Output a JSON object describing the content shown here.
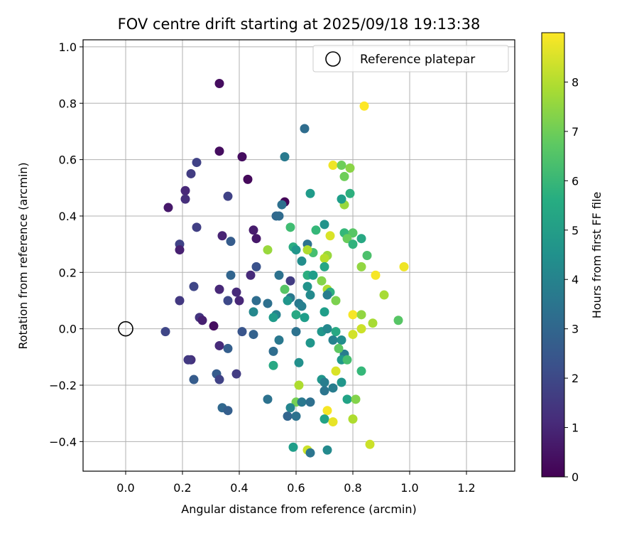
{
  "chart_data": {
    "type": "scatter",
    "title": "FOV centre drift starting at 2025/09/18 19:13:38",
    "xlabel": "Angular distance from reference (arcmin)",
    "ylabel": "Rotation from reference (arcmin)",
    "xlim": [
      -0.15,
      1.37
    ],
    "ylim": [
      -0.505,
      1.025
    ],
    "xticks": [
      0.0,
      0.2,
      0.4,
      0.6,
      0.8,
      1.0,
      1.2
    ],
    "xtick_labels": [
      "0.0",
      "0.2",
      "0.4",
      "0.6",
      "0.8",
      "1.0",
      "1.2"
    ],
    "yticks": [
      -0.4,
      -0.2,
      0.0,
      0.2,
      0.4,
      0.6,
      0.8,
      1.0
    ],
    "ytick_labels": [
      "−0.4",
      "−0.2",
      "0.0",
      "0.2",
      "0.4",
      "0.6",
      "0.8",
      "1.0"
    ],
    "grid": true,
    "legend": {
      "position": "top-right",
      "entries": [
        "Reference platepar"
      ]
    },
    "reference_point": {
      "x": 0.0,
      "y": 0.0,
      "label": "Reference platepar"
    },
    "colorbar": {
      "label": "Hours from first FF file",
      "min": 0,
      "max": 9.0,
      "ticks": [
        0,
        1,
        2,
        3,
        4,
        5,
        6,
        7,
        8
      ],
      "tick_labels": [
        "0",
        "1",
        "2",
        "3",
        "4",
        "5",
        "6",
        "7",
        "8"
      ],
      "colormap": "viridis"
    },
    "points": [
      {
        "x": 0.33,
        "y": 0.87,
        "t": 0.3
      },
      {
        "x": 0.41,
        "y": 0.61,
        "t": 0.3
      },
      {
        "x": 0.33,
        "y": 0.63,
        "t": 0.3
      },
      {
        "x": 0.43,
        "y": 0.53,
        "t": 0.2
      },
      {
        "x": 0.56,
        "y": 0.45,
        "t": 0.1
      },
      {
        "x": 0.15,
        "y": 0.43,
        "t": 0.6
      },
      {
        "x": 0.21,
        "y": 0.49,
        "t": 1.0
      },
      {
        "x": 0.21,
        "y": 0.46,
        "t": 1.2
      },
      {
        "x": 0.23,
        "y": 0.55,
        "t": 1.6
      },
      {
        "x": 0.25,
        "y": 0.59,
        "t": 1.8
      },
      {
        "x": 0.36,
        "y": 0.47,
        "t": 1.8
      },
      {
        "x": 0.25,
        "y": 0.36,
        "t": 1.7
      },
      {
        "x": 0.34,
        "y": 0.33,
        "t": 0.9
      },
      {
        "x": 0.37,
        "y": 0.31,
        "t": 2.6
      },
      {
        "x": 0.45,
        "y": 0.35,
        "t": 0.7
      },
      {
        "x": 0.46,
        "y": 0.32,
        "t": 0.6
      },
      {
        "x": 0.19,
        "y": 0.3,
        "t": 1.8
      },
      {
        "x": 0.19,
        "y": 0.28,
        "t": 0.8
      },
      {
        "x": 0.46,
        "y": 0.22,
        "t": 2.3
      },
      {
        "x": 0.44,
        "y": 0.19,
        "t": 1.1
      },
      {
        "x": 0.37,
        "y": 0.19,
        "t": 2.9
      },
      {
        "x": 0.24,
        "y": 0.15,
        "t": 1.9
      },
      {
        "x": 0.33,
        "y": 0.14,
        "t": 1.0
      },
      {
        "x": 0.39,
        "y": 0.13,
        "t": 1.1
      },
      {
        "x": 0.36,
        "y": 0.1,
        "t": 2.0
      },
      {
        "x": 0.4,
        "y": 0.1,
        "t": 1.0
      },
      {
        "x": 0.19,
        "y": 0.1,
        "t": 1.5
      },
      {
        "x": 0.26,
        "y": 0.04,
        "t": 1.4
      },
      {
        "x": 0.27,
        "y": 0.03,
        "t": 0.8
      },
      {
        "x": 0.31,
        "y": 0.01,
        "t": 0.3
      },
      {
        "x": 0.14,
        "y": -0.01,
        "t": 1.9
      },
      {
        "x": 0.41,
        "y": -0.01,
        "t": 2.4
      },
      {
        "x": 0.45,
        "y": -0.02,
        "t": 2.8
      },
      {
        "x": 0.33,
        "y": -0.06,
        "t": 1.1
      },
      {
        "x": 0.36,
        "y": -0.07,
        "t": 2.7
      },
      {
        "x": 0.23,
        "y": -0.11,
        "t": 1.3
      },
      {
        "x": 0.22,
        "y": -0.11,
        "t": 1.5
      },
      {
        "x": 0.32,
        "y": -0.16,
        "t": 2.6
      },
      {
        "x": 0.33,
        "y": -0.18,
        "t": 1.8
      },
      {
        "x": 0.39,
        "y": -0.16,
        "t": 1.6
      },
      {
        "x": 0.24,
        "y": -0.18,
        "t": 2.6
      },
      {
        "x": 0.34,
        "y": -0.28,
        "t": 3.0
      },
      {
        "x": 0.36,
        "y": -0.29,
        "t": 2.7
      },
      {
        "x": 0.63,
        "y": 0.71,
        "t": 3.2
      },
      {
        "x": 0.56,
        "y": 0.61,
        "t": 3.7
      },
      {
        "x": 0.65,
        "y": 0.48,
        "t": 4.9
      },
      {
        "x": 0.55,
        "y": 0.44,
        "t": 3.3
      },
      {
        "x": 0.53,
        "y": 0.4,
        "t": 3.0
      },
      {
        "x": 0.54,
        "y": 0.4,
        "t": 3.1
      },
      {
        "x": 0.58,
        "y": 0.36,
        "t": 6.2
      },
      {
        "x": 0.67,
        "y": 0.35,
        "t": 6.0
      },
      {
        "x": 0.7,
        "y": 0.37,
        "t": 4.6
      },
      {
        "x": 0.64,
        "y": 0.3,
        "t": 3.4
      },
      {
        "x": 0.59,
        "y": 0.29,
        "t": 5.5
      },
      {
        "x": 0.6,
        "y": 0.28,
        "t": 4.7
      },
      {
        "x": 0.66,
        "y": 0.27,
        "t": 6.3
      },
      {
        "x": 0.5,
        "y": 0.28,
        "t": 7.6
      },
      {
        "x": 0.64,
        "y": 0.28,
        "t": 7.9
      },
      {
        "x": 0.71,
        "y": 0.26,
        "t": 7.6
      },
      {
        "x": 0.7,
        "y": 0.25,
        "t": 8.0
      },
      {
        "x": 0.72,
        "y": 0.33,
        "t": 8.5
      },
      {
        "x": 0.62,
        "y": 0.24,
        "t": 4.4
      },
      {
        "x": 0.7,
        "y": 0.22,
        "t": 5.3
      },
      {
        "x": 0.54,
        "y": 0.19,
        "t": 3.4
      },
      {
        "x": 0.64,
        "y": 0.19,
        "t": 5.6
      },
      {
        "x": 0.66,
        "y": 0.19,
        "t": 5.0
      },
      {
        "x": 0.69,
        "y": 0.17,
        "t": 7.3
      },
      {
        "x": 0.58,
        "y": 0.17,
        "t": 1.6
      },
      {
        "x": 0.64,
        "y": 0.15,
        "t": 4.6
      },
      {
        "x": 0.71,
        "y": 0.14,
        "t": 7.9
      },
      {
        "x": 0.72,
        "y": 0.13,
        "t": 5.6
      },
      {
        "x": 0.56,
        "y": 0.14,
        "t": 6.6
      },
      {
        "x": 0.71,
        "y": 0.12,
        "t": 3.8
      },
      {
        "x": 0.65,
        "y": 0.12,
        "t": 4.3
      },
      {
        "x": 0.58,
        "y": 0.11,
        "t": 3.6
      },
      {
        "x": 0.57,
        "y": 0.1,
        "t": 4.7
      },
      {
        "x": 0.74,
        "y": 0.1,
        "t": 7.2
      },
      {
        "x": 0.61,
        "y": 0.09,
        "t": 3.6
      },
      {
        "x": 0.62,
        "y": 0.08,
        "t": 3.9
      },
      {
        "x": 0.46,
        "y": 0.1,
        "t": 3.2
      },
      {
        "x": 0.5,
        "y": 0.09,
        "t": 3.3
      },
      {
        "x": 0.45,
        "y": 0.06,
        "t": 4.2
      },
      {
        "x": 0.53,
        "y": 0.05,
        "t": 4.0
      },
      {
        "x": 0.52,
        "y": 0.04,
        "t": 4.9
      },
      {
        "x": 0.6,
        "y": 0.05,
        "t": 5.4
      },
      {
        "x": 0.63,
        "y": 0.04,
        "t": 5.0
      },
      {
        "x": 0.7,
        "y": 0.06,
        "t": 5.0
      },
      {
        "x": 0.6,
        "y": -0.01,
        "t": 3.4
      },
      {
        "x": 0.69,
        "y": -0.01,
        "t": 4.7
      },
      {
        "x": 0.71,
        "y": 0.0,
        "t": 4.2
      },
      {
        "x": 0.74,
        "y": -0.01,
        "t": 5.4
      },
      {
        "x": 0.54,
        "y": -0.04,
        "t": 3.6
      },
      {
        "x": 0.65,
        "y": -0.05,
        "t": 4.7
      },
      {
        "x": 0.73,
        "y": -0.04,
        "t": 4.0
      },
      {
        "x": 0.76,
        "y": -0.04,
        "t": 4.4
      },
      {
        "x": 0.52,
        "y": -0.08,
        "t": 3.2
      },
      {
        "x": 0.77,
        "y": -0.09,
        "t": 3.8
      },
      {
        "x": 0.75,
        "y": -0.07,
        "t": 6.7
      },
      {
        "x": 0.76,
        "y": -0.11,
        "t": 4.8
      },
      {
        "x": 0.78,
        "y": -0.11,
        "t": 6.3
      },
      {
        "x": 0.61,
        "y": -0.12,
        "t": 4.5
      },
      {
        "x": 0.52,
        "y": -0.13,
        "t": 5.4
      },
      {
        "x": 0.74,
        "y": -0.15,
        "t": 8.5
      },
      {
        "x": 0.69,
        "y": -0.18,
        "t": 4.7
      },
      {
        "x": 0.7,
        "y": -0.19,
        "t": 3.8
      },
      {
        "x": 0.76,
        "y": -0.19,
        "t": 4.7
      },
      {
        "x": 0.61,
        "y": -0.2,
        "t": 7.9
      },
      {
        "x": 0.7,
        "y": -0.22,
        "t": 3.5
      },
      {
        "x": 0.73,
        "y": -0.21,
        "t": 3.8
      },
      {
        "x": 0.83,
        "y": -0.15,
        "t": 6.0
      },
      {
        "x": 0.78,
        "y": -0.25,
        "t": 5.2
      },
      {
        "x": 0.81,
        "y": -0.25,
        "t": 7.3
      },
      {
        "x": 0.5,
        "y": -0.25,
        "t": 3.4
      },
      {
        "x": 0.6,
        "y": -0.26,
        "t": 7.1
      },
      {
        "x": 0.62,
        "y": -0.26,
        "t": 3.6
      },
      {
        "x": 0.65,
        "y": -0.26,
        "t": 3.3
      },
      {
        "x": 0.58,
        "y": -0.28,
        "t": 4.1
      },
      {
        "x": 0.57,
        "y": -0.31,
        "t": 2.9
      },
      {
        "x": 0.6,
        "y": -0.31,
        "t": 3.4
      },
      {
        "x": 0.71,
        "y": -0.29,
        "t": 8.9
      },
      {
        "x": 0.7,
        "y": -0.32,
        "t": 5.2
      },
      {
        "x": 0.73,
        "y": -0.33,
        "t": 8.7
      },
      {
        "x": 0.8,
        "y": -0.32,
        "t": 7.9
      },
      {
        "x": 0.59,
        "y": -0.42,
        "t": 5.0
      },
      {
        "x": 0.64,
        "y": -0.43,
        "t": 8.3
      },
      {
        "x": 0.65,
        "y": -0.44,
        "t": 3.5
      },
      {
        "x": 0.71,
        "y": -0.43,
        "t": 4.3
      },
      {
        "x": 0.86,
        "y": -0.41,
        "t": 8.3
      },
      {
        "x": 0.84,
        "y": 0.79,
        "t": 9.0
      },
      {
        "x": 0.73,
        "y": 0.58,
        "t": 8.8
      },
      {
        "x": 0.76,
        "y": 0.58,
        "t": 7.0
      },
      {
        "x": 0.79,
        "y": 0.57,
        "t": 7.4
      },
      {
        "x": 0.77,
        "y": 0.54,
        "t": 7.0
      },
      {
        "x": 0.77,
        "y": 0.44,
        "t": 7.6
      },
      {
        "x": 0.76,
        "y": 0.46,
        "t": 5.0
      },
      {
        "x": 0.79,
        "y": 0.48,
        "t": 5.7
      },
      {
        "x": 0.77,
        "y": 0.34,
        "t": 6.0
      },
      {
        "x": 0.8,
        "y": 0.34,
        "t": 6.6
      },
      {
        "x": 0.78,
        "y": 0.32,
        "t": 6.9
      },
      {
        "x": 0.83,
        "y": 0.32,
        "t": 5.4
      },
      {
        "x": 0.8,
        "y": 0.3,
        "t": 5.8
      },
      {
        "x": 0.85,
        "y": 0.26,
        "t": 6.4
      },
      {
        "x": 0.83,
        "y": 0.22,
        "t": 7.5
      },
      {
        "x": 0.88,
        "y": 0.19,
        "t": 8.9
      },
      {
        "x": 0.98,
        "y": 0.22,
        "t": 8.8
      },
      {
        "x": 0.91,
        "y": 0.12,
        "t": 7.8
      },
      {
        "x": 0.8,
        "y": 0.05,
        "t": 8.9
      },
      {
        "x": 0.83,
        "y": 0.05,
        "t": 7.5
      },
      {
        "x": 0.96,
        "y": 0.03,
        "t": 6.6
      },
      {
        "x": 0.87,
        "y": 0.02,
        "t": 7.8
      },
      {
        "x": 0.83,
        "y": 0.0,
        "t": 8.3
      },
      {
        "x": 0.8,
        "y": -0.02,
        "t": 8.4
      }
    ]
  }
}
